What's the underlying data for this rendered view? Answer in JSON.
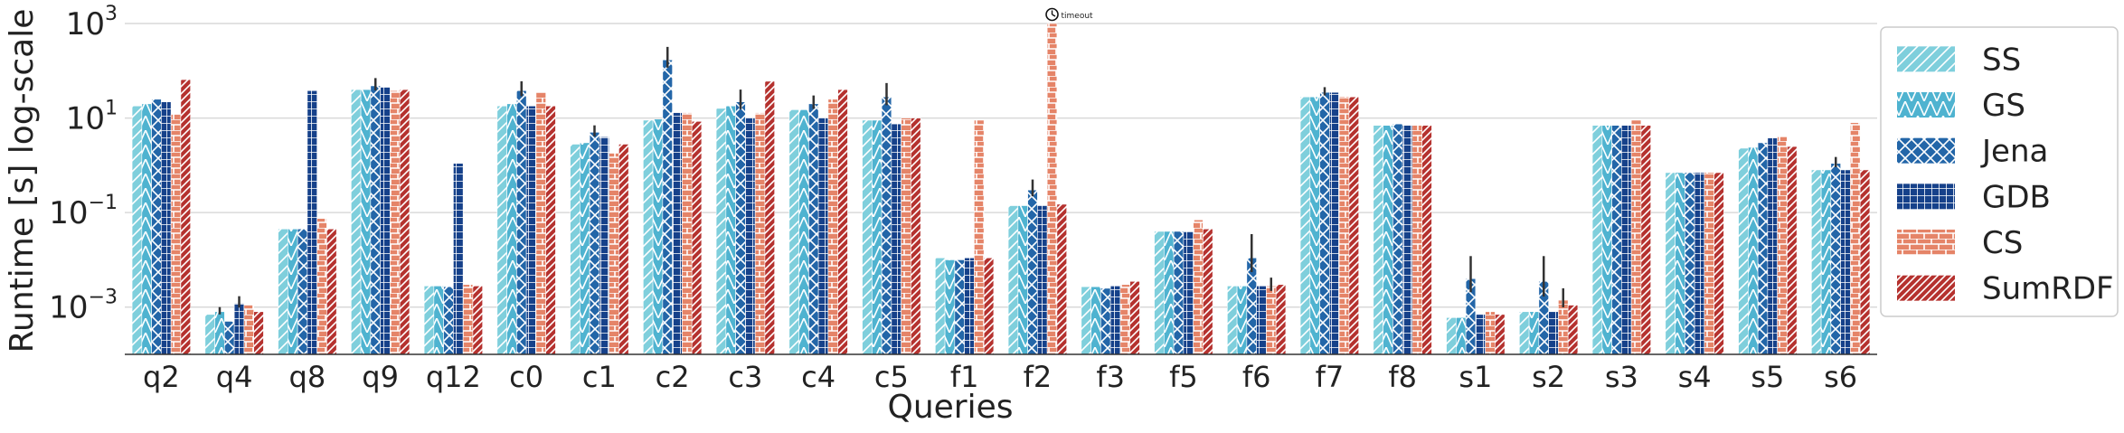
{
  "chart_data": {
    "type": "bar",
    "title": "",
    "xlabel": "Queries",
    "ylabel": "Runtime [s] log-scale",
    "y_scale": "log",
    "ylim": [
      0.0001,
      1000
    ],
    "yticks": [
      {
        "value": 0.001,
        "base": "10",
        "exp": "−3"
      },
      {
        "value": 0.1,
        "base": "10",
        "exp": "−1"
      },
      {
        "value": 10,
        "base": "10",
        "exp": "1"
      },
      {
        "value": 1000,
        "base": "10",
        "exp": "3"
      }
    ],
    "grid": "horizontal",
    "legend_placement": "right",
    "annotation": {
      "text": "timeout",
      "category": "f2",
      "series": "CS",
      "icon": "clock-icon"
    },
    "categories": [
      "q2",
      "q4",
      "q8",
      "q9",
      "q12",
      "c0",
      "c1",
      "c2",
      "c3",
      "c4",
      "c5",
      "f1",
      "f2",
      "f3",
      "f5",
      "f6",
      "f7",
      "f8",
      "s1",
      "s2",
      "s3",
      "s4",
      "s5",
      "s6"
    ],
    "series": [
      {
        "name": "SS",
        "color": "#7fcfdc",
        "pattern": "diag-light",
        "values": [
          18,
          0.0007,
          0.045,
          40,
          0.0028,
          18,
          2.8,
          9,
          16,
          15,
          9,
          0.011,
          0.14,
          0.0027,
          0.04,
          0.0028,
          28,
          7,
          0.0006,
          0.0008,
          7,
          0.7,
          2.3,
          0.8
        ]
      },
      {
        "name": "GS",
        "color": "#4fb3d0",
        "pattern": "chevron",
        "values": [
          20,
          0.0008,
          0.045,
          40,
          0.0028,
          20,
          3,
          9.5,
          18,
          15,
          9,
          0.01,
          0.14,
          0.0027,
          0.04,
          0.0028,
          28,
          7,
          0.0006,
          0.0008,
          7,
          0.7,
          2.4,
          0.8
        ]
      },
      {
        "name": "Jena",
        "color": "#2366a8",
        "pattern": "cross",
        "values": [
          25,
          0.0005,
          0.045,
          48,
          0.0027,
          38,
          5,
          170,
          22,
          20,
          28,
          0.01,
          0.3,
          0.0025,
          0.04,
          0.011,
          35,
          7.5,
          0.004,
          0.0035,
          7,
          0.7,
          3,
          1.1
        ]
      },
      {
        "name": "GDB",
        "color": "#16418a",
        "pattern": "grid",
        "values": [
          22,
          0.0012,
          38,
          45,
          1.1,
          18,
          4,
          13,
          10,
          10,
          7.5,
          0.011,
          0.14,
          0.0028,
          0.04,
          0.0028,
          35,
          7,
          0.0007,
          0.0008,
          7,
          0.7,
          3.8,
          0.8
        ]
      },
      {
        "name": "CS",
        "color": "#e58468",
        "pattern": "bricks",
        "values": [
          12,
          0.0011,
          0.075,
          38,
          0.003,
          35,
          1.8,
          13,
          13,
          25,
          10,
          9,
          1000,
          0.003,
          0.07,
          0.0028,
          28,
          7,
          0.0008,
          0.0014,
          9,
          0.7,
          4,
          8
        ]
      },
      {
        "name": "SumRDF",
        "color": "#b5322f",
        "pattern": "diag-dense",
        "values": [
          65,
          0.0008,
          0.045,
          40,
          0.0028,
          18,
          2.8,
          8.5,
          60,
          40,
          10,
          0.011,
          0.15,
          0.0035,
          0.045,
          0.003,
          28,
          7,
          0.0007,
          0.0011,
          7,
          0.7,
          2.5,
          0.8
        ]
      }
    ],
    "error_upper": [
      [
        null,
        null,
        null,
        null,
        null,
        null
      ],
      [
        null,
        0.001,
        null,
        0.0017,
        null,
        null
      ],
      [
        null,
        null,
        null,
        null,
        null,
        null
      ],
      [
        null,
        null,
        70,
        null,
        null,
        null
      ],
      [
        null,
        null,
        null,
        null,
        null,
        null
      ],
      [
        null,
        null,
        60,
        null,
        null,
        null
      ],
      [
        null,
        null,
        7,
        null,
        null,
        null
      ],
      [
        null,
        null,
        320,
        null,
        null,
        null
      ],
      [
        null,
        null,
        40,
        null,
        null,
        null
      ],
      [
        null,
        null,
        30,
        null,
        null,
        null
      ],
      [
        null,
        null,
        55,
        null,
        null,
        null
      ],
      [
        null,
        null,
        null,
        null,
        null,
        null
      ],
      [
        null,
        null,
        0.5,
        null,
        null,
        null
      ],
      [
        null,
        null,
        null,
        null,
        null,
        null
      ],
      [
        null,
        null,
        null,
        null,
        null,
        null
      ],
      [
        null,
        null,
        0.035,
        null,
        0.0042,
        null
      ],
      [
        null,
        null,
        45,
        null,
        null,
        null
      ],
      [
        null,
        null,
        null,
        null,
        null,
        null
      ],
      [
        null,
        null,
        0.012,
        null,
        null,
        null
      ],
      [
        null,
        null,
        0.012,
        null,
        0.0025,
        null
      ],
      [
        null,
        null,
        null,
        null,
        null,
        null
      ],
      [
        null,
        null,
        null,
        null,
        null,
        null
      ],
      [
        null,
        null,
        null,
        null,
        null,
        null
      ],
      [
        null,
        null,
        1.5,
        null,
        null,
        null
      ]
    ]
  }
}
